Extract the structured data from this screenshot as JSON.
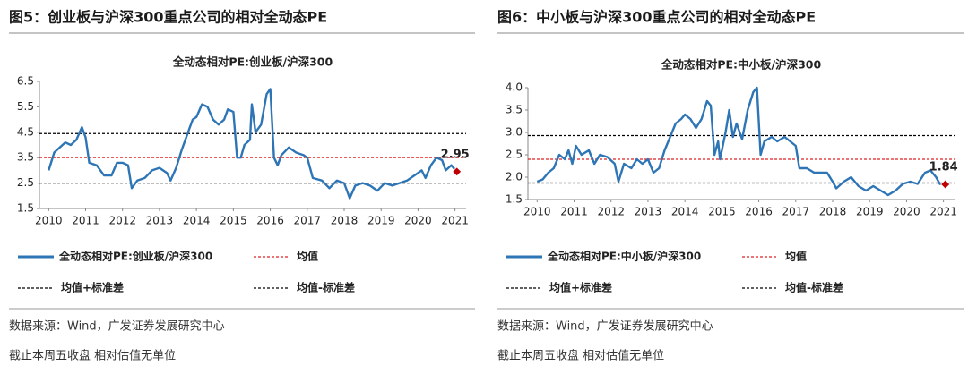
{
  "chart_data": [
    {
      "type": "line",
      "heading": "图5：创业板与沪深300重点公司的相对全动态PE",
      "title": "全动态相对PE:创业板/沪深300",
      "source": "数据来源：Wind，广发证券发展研究中心",
      "note": "截止本周五收盘 相对估值无单位",
      "x": [
        2010.0,
        2010.15,
        2010.3,
        2010.45,
        2010.6,
        2010.75,
        2010.9,
        2011.0,
        2011.1,
        2011.3,
        2011.5,
        2011.7,
        2011.85,
        2012.0,
        2012.15,
        2012.25,
        2012.4,
        2012.6,
        2012.8,
        2013.0,
        2013.2,
        2013.3,
        2013.45,
        2013.6,
        2013.75,
        2013.9,
        2014.0,
        2014.15,
        2014.3,
        2014.45,
        2014.6,
        2014.75,
        2014.85,
        2015.0,
        2015.1,
        2015.2,
        2015.3,
        2015.45,
        2015.5,
        2015.6,
        2015.75,
        2015.9,
        2016.0,
        2016.1,
        2016.2,
        2016.3,
        2016.5,
        2016.7,
        2016.9,
        2017.0,
        2017.15,
        2017.4,
        2017.6,
        2017.8,
        2018.0,
        2018.15,
        2018.3,
        2018.5,
        2018.7,
        2018.9,
        2019.1,
        2019.3,
        2019.5,
        2019.7,
        2019.9,
        2020.1,
        2020.2,
        2020.35,
        2020.5,
        2020.65,
        2020.75,
        2020.9,
        2021.05
      ],
      "series": [
        {
          "name": "全动态相对PE:创业板/沪深300",
          "color": "#2e75b6",
          "values": [
            3.0,
            3.7,
            3.9,
            4.1,
            4.0,
            4.2,
            4.7,
            4.3,
            3.3,
            3.2,
            2.8,
            2.8,
            3.3,
            3.3,
            3.2,
            2.3,
            2.6,
            2.7,
            3.0,
            3.1,
            2.9,
            2.6,
            3.1,
            3.8,
            4.4,
            5.0,
            5.1,
            5.6,
            5.5,
            5.0,
            4.8,
            5.0,
            5.4,
            5.3,
            3.5,
            3.5,
            4.0,
            4.2,
            5.6,
            4.5,
            4.8,
            6.0,
            6.2,
            3.5,
            3.2,
            3.6,
            3.9,
            3.7,
            3.6,
            3.5,
            2.7,
            2.6,
            2.3,
            2.6,
            2.5,
            1.9,
            2.4,
            2.5,
            2.4,
            2.2,
            2.5,
            2.4,
            2.5,
            2.6,
            2.8,
            3.0,
            2.7,
            3.2,
            3.5,
            3.4,
            3.0,
            3.2,
            2.95
          ]
        }
      ],
      "hlines": [
        {
          "name": "均值",
          "color": "#e02020",
          "value": 3.5
        },
        {
          "name": "均值+标准差",
          "color": "#000000",
          "value": 4.45
        },
        {
          "name": "均值-标准差",
          "color": "#000000",
          "value": 2.5
        }
      ],
      "marker_color": "#c00000",
      "xlim": [
        2009.75,
        2021.3
      ],
      "xticks": [
        2010,
        2011,
        2012,
        2013,
        2014,
        2015,
        2016,
        2017,
        2018,
        2019,
        2020,
        2021
      ],
      "ylim": [
        1.5,
        6.5
      ],
      "yticks": [
        6.5,
        5.5,
        4.5,
        3.5,
        2.5,
        1.5
      ]
    },
    {
      "type": "line",
      "heading": "图6：中小板与沪深300重点公司的相对全动态PE",
      "title": "全动态相对PE:中小板/沪深300",
      "source": "数据来源：Wind，广发证券发展研究中心",
      "note": "截止本周五收盘 相对估值无单位",
      "x": [
        2010.0,
        2010.15,
        2010.3,
        2010.45,
        2010.6,
        2010.75,
        2010.85,
        2010.95,
        2011.05,
        2011.2,
        2011.4,
        2011.55,
        2011.7,
        2011.9,
        2012.1,
        2012.2,
        2012.35,
        2012.55,
        2012.7,
        2012.85,
        2013.0,
        2013.15,
        2013.3,
        2013.45,
        2013.6,
        2013.75,
        2013.9,
        2014.0,
        2014.15,
        2014.3,
        2014.45,
        2014.6,
        2014.7,
        2014.8,
        2014.9,
        2014.95,
        2015.1,
        2015.2,
        2015.3,
        2015.4,
        2015.55,
        2015.7,
        2015.85,
        2015.95,
        2016.05,
        2016.15,
        2016.35,
        2016.5,
        2016.7,
        2016.85,
        2017.0,
        2017.1,
        2017.3,
        2017.5,
        2017.7,
        2017.85,
        2018.0,
        2018.1,
        2018.3,
        2018.5,
        2018.7,
        2018.9,
        2019.1,
        2019.3,
        2019.5,
        2019.7,
        2019.9,
        2020.1,
        2020.3,
        2020.5,
        2020.65,
        2020.8,
        2020.9,
        2021.05
      ],
      "series": [
        {
          "name": "全动态相对PE:中小板/沪深300",
          "color": "#2e75b6",
          "values": [
            1.9,
            1.95,
            2.1,
            2.2,
            2.5,
            2.4,
            2.6,
            2.3,
            2.7,
            2.5,
            2.6,
            2.3,
            2.5,
            2.45,
            2.3,
            1.9,
            2.3,
            2.2,
            2.4,
            2.3,
            2.4,
            2.1,
            2.2,
            2.6,
            2.9,
            3.2,
            3.3,
            3.4,
            3.3,
            3.1,
            3.3,
            3.7,
            3.6,
            2.5,
            2.8,
            2.4,
            3.0,
            3.5,
            2.9,
            3.2,
            2.85,
            3.5,
            3.9,
            4.0,
            2.5,
            2.8,
            2.9,
            2.8,
            2.9,
            2.8,
            2.7,
            2.2,
            2.2,
            2.1,
            2.1,
            2.1,
            1.9,
            1.75,
            1.9,
            2.0,
            1.8,
            1.7,
            1.8,
            1.7,
            1.6,
            1.7,
            1.85,
            1.9,
            1.85,
            2.1,
            2.15,
            2.0,
            1.85,
            1.84
          ]
        }
      ],
      "hlines": [
        {
          "name": "均值",
          "color": "#e02020",
          "value": 2.4
        },
        {
          "name": "均值+标准差",
          "color": "#000000",
          "value": 2.93
        },
        {
          "name": "均值-标准差",
          "color": "#000000",
          "value": 1.87
        }
      ],
      "marker_color": "#c00000",
      "xlim": [
        2009.75,
        2021.3
      ],
      "xticks": [
        2010,
        2011,
        2012,
        2013,
        2014,
        2015,
        2016,
        2017,
        2018,
        2019,
        2020,
        2021
      ],
      "ylim": [
        1.5,
        4.0
      ],
      "yticks": [
        {
          "value": 4.0,
          "label": "4.0"
        },
        3.5,
        {
          "value": 3.0,
          "label": "3.0"
        },
        2.5,
        {
          "value": 2.0,
          "label": "2.0"
        },
        1.5
      ]
    }
  ]
}
